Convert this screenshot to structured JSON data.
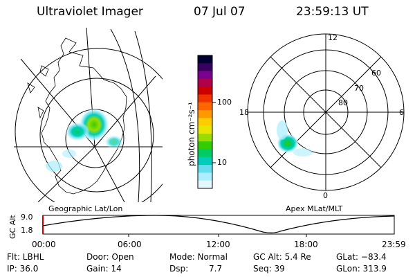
{
  "header": {
    "instrument": "Ultraviolet Imager",
    "date": "07 Jul 07",
    "time": "23:59:13 UT"
  },
  "geo_panel": {
    "caption": "Geographic Lat/Lon"
  },
  "colorbar": {
    "unit_label": "photon cm⁻²s⁻¹",
    "ticks": [
      "100",
      "10"
    ],
    "colors": [
      "#000033",
      "#3a0060",
      "#7a0090",
      "#b0004a",
      "#cc0000",
      "#ee3300",
      "#ff6600",
      "#ff9900",
      "#ffcc00",
      "#e6e600",
      "#99dd00",
      "#33cc00",
      "#00cc66",
      "#00ccbb",
      "#66ddee",
      "#aaeeff",
      "#e6f6ff"
    ]
  },
  "polar_panel": {
    "caption": "Apex MLat/MLT",
    "mlt_labels": {
      "top": "12",
      "left": "18",
      "right": "6",
      "bottom": "0"
    },
    "lat_labels": [
      "60",
      "70",
      "80"
    ]
  },
  "altitude_plot": {
    "ylabel": "GC Alt",
    "yticks": [
      "9.0",
      "1.8"
    ],
    "xticks": [
      "00:00",
      "06:00",
      "12:00",
      "18:00",
      "23:59"
    ]
  },
  "status": {
    "filter": "Flt: LBHL",
    "ip": "IP: 36.0",
    "door": "Door: Open",
    "gain": "Gain: 14",
    "mode": "Mode: Normal",
    "dsp": "Dsp:",
    "dsp_value": "7.7",
    "gc_alt": "GC Alt: 5.4 Re",
    "seq": "Seq: 39",
    "glat": "GLat: −83.4",
    "glon": "GLon: 313.9"
  }
}
